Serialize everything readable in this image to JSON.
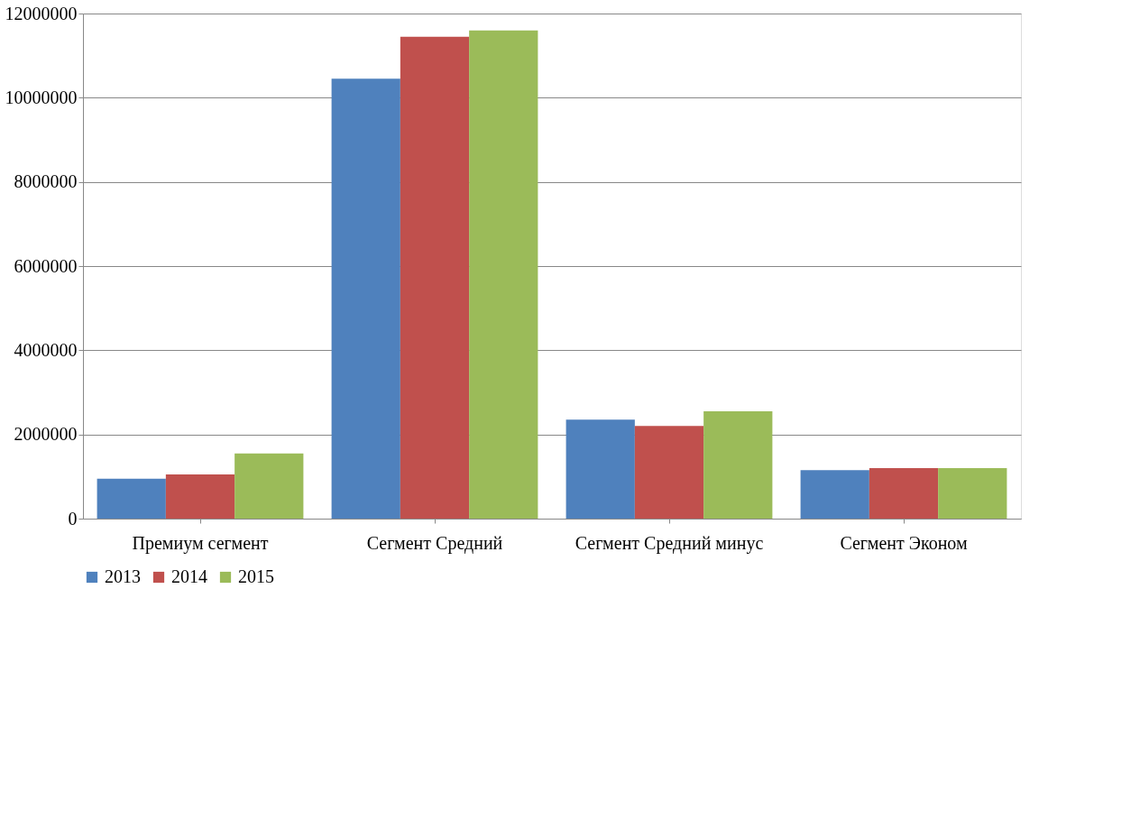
{
  "chart_data": {
    "type": "bar",
    "categories": [
      "Премиум сегмент",
      "Сегмент Средний",
      "Сегмент Средний минус",
      "Сегмент Эконом"
    ],
    "series": [
      {
        "name": "2013",
        "color": "#4f81bd",
        "values": [
          950000,
          10450000,
          2350000,
          1150000
        ]
      },
      {
        "name": "2014",
        "color": "#c0504d",
        "values": [
          1050000,
          11450000,
          2200000,
          1200000
        ]
      },
      {
        "name": "2015",
        "color": "#9bbb59",
        "values": [
          1550000,
          11600000,
          2550000,
          1200000
        ]
      }
    ],
    "ylim": [
      0,
      12000000
    ],
    "yticks": [
      0,
      2000000,
      4000000,
      6000000,
      8000000,
      10000000,
      12000000
    ],
    "grid": "y",
    "legend": "bottom"
  }
}
